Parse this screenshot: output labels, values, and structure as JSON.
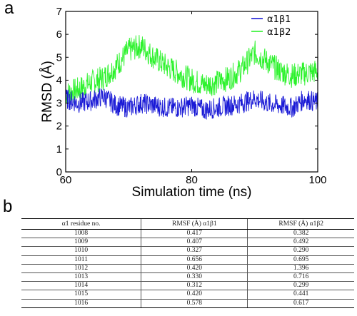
{
  "panel_labels": {
    "a": "a",
    "b": "b"
  },
  "chart_data": {
    "type": "line",
    "xlabel": "Simulation time (ns)",
    "ylabel": "RMSD (Å)",
    "xlim": [
      60,
      100
    ],
    "ylim": [
      0,
      7
    ],
    "xticks": [
      60,
      80,
      100
    ],
    "yticks": [
      0,
      1,
      2,
      3,
      4,
      5,
      6,
      7
    ],
    "legend_position": "top-right",
    "series": [
      {
        "name": "α1β1",
        "color": "#1a1ad6",
        "x": [
          60,
          62,
          64,
          66,
          68,
          70,
          72,
          74,
          76,
          78,
          80,
          82,
          84,
          86,
          88,
          90,
          92,
          94,
          96,
          98,
          100
        ],
        "y": [
          3.2,
          3.0,
          3.1,
          3.3,
          2.9,
          2.8,
          3.0,
          2.9,
          2.8,
          2.8,
          2.9,
          2.7,
          2.8,
          2.9,
          3.0,
          3.2,
          3.0,
          2.9,
          2.8,
          3.2,
          3.0
        ]
      },
      {
        "name": "α1β2",
        "color": "#2cf22c",
        "x": [
          60,
          62,
          64,
          66,
          68,
          70,
          72,
          74,
          76,
          78,
          80,
          82,
          84,
          86,
          88,
          90,
          92,
          94,
          96,
          98,
          100
        ],
        "y": [
          3.4,
          3.6,
          3.9,
          4.1,
          4.6,
          5.3,
          5.5,
          5.0,
          4.6,
          4.3,
          4.0,
          3.8,
          3.9,
          4.1,
          4.5,
          5.2,
          4.8,
          4.4,
          4.2,
          4.3,
          4.4
        ]
      }
    ]
  },
  "table": {
    "headers": [
      "α1 residue no.",
      "RMSF (Å) α1β1",
      "RMSF (Å) α1β2"
    ],
    "rows": [
      [
        "1008",
        "0.417",
        "0.382"
      ],
      [
        "1009",
        "0.407",
        "0.492"
      ],
      [
        "1010",
        "0.327",
        "0.290"
      ],
      [
        "1011",
        "0.656",
        "0.695"
      ],
      [
        "1012",
        "0.420",
        "1.396"
      ],
      [
        "1013",
        "0.330",
        "0.716"
      ],
      [
        "1014",
        "0.312",
        "0.299"
      ],
      [
        "1015",
        "0.420",
        "0.441"
      ],
      [
        "1016",
        "0.578",
        "0.617"
      ]
    ]
  }
}
